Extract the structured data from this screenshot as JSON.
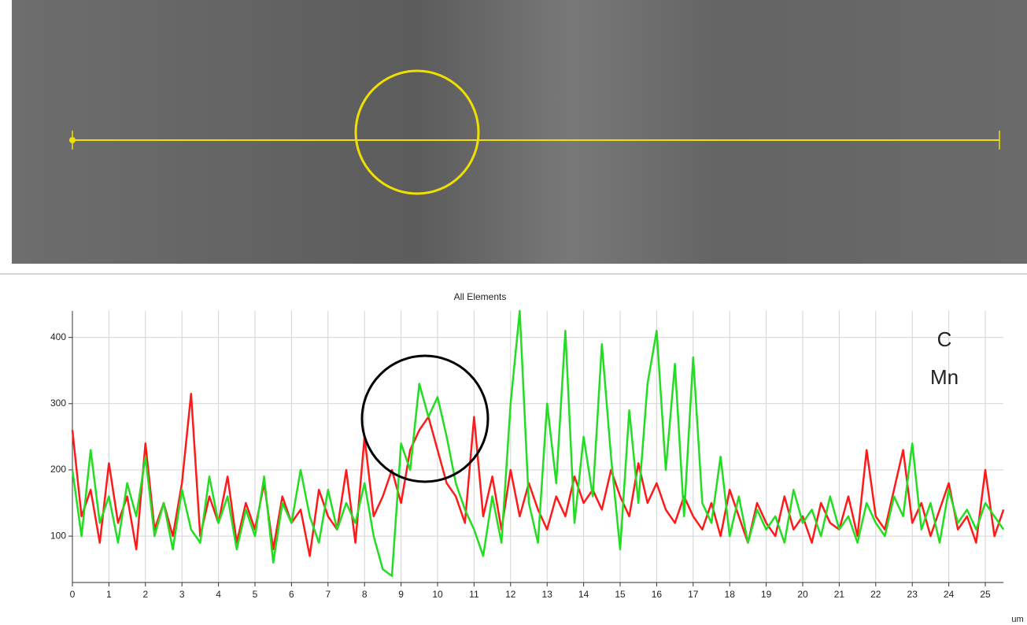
{
  "chart_data": {
    "type": "line",
    "title": "All Elements",
    "x_label": "um",
    "x": [
      0,
      0.25,
      0.5,
      0.75,
      1,
      1.25,
      1.5,
      1.75,
      2,
      2.25,
      2.5,
      2.75,
      3,
      3.25,
      3.5,
      3.75,
      4,
      4.25,
      4.5,
      4.75,
      5,
      5.25,
      5.5,
      5.75,
      6,
      6.25,
      6.5,
      6.75,
      7,
      7.25,
      7.5,
      7.75,
      8,
      8.25,
      8.5,
      8.75,
      9,
      9.25,
      9.5,
      9.75,
      10,
      10.25,
      10.5,
      10.75,
      11,
      11.25,
      11.5,
      11.75,
      12,
      12.25,
      12.5,
      12.75,
      13,
      13.25,
      13.5,
      13.75,
      14,
      14.25,
      14.5,
      14.75,
      15,
      15.25,
      15.5,
      15.75,
      16,
      16.25,
      16.5,
      16.75,
      17,
      17.25,
      17.5,
      17.75,
      18,
      18.25,
      18.5,
      18.75,
      19,
      19.25,
      19.5,
      19.75,
      20,
      20.25,
      20.5,
      20.75,
      21,
      21.25,
      21.5,
      21.75,
      22,
      22.25,
      22.5,
      22.75,
      23,
      23.25,
      23.5,
      23.75,
      24,
      24.25,
      24.5,
      24.75,
      25,
      25.25,
      25.5
    ],
    "series": [
      {
        "name": "Mn",
        "color": "#ff1a1a",
        "values": [
          260,
          130,
          170,
          90,
          210,
          120,
          160,
          80,
          240,
          110,
          150,
          100,
          180,
          315,
          100,
          160,
          120,
          190,
          90,
          150,
          110,
          180,
          80,
          160,
          120,
          140,
          70,
          170,
          130,
          110,
          200,
          90,
          250,
          130,
          160,
          200,
          150,
          230,
          260,
          280,
          230,
          180,
          160,
          120,
          280,
          130,
          190,
          110,
          200,
          130,
          180,
          140,
          110,
          160,
          130,
          190,
          150,
          170,
          140,
          200,
          160,
          130,
          210,
          150,
          180,
          140,
          120,
          160,
          130,
          110,
          150,
          100,
          170,
          130,
          90,
          150,
          120,
          100,
          160,
          110,
          130,
          90,
          150,
          120,
          110,
          160,
          100,
          230,
          130,
          110,
          170,
          230,
          120,
          150,
          100,
          140,
          180,
          110,
          130,
          90,
          200,
          100,
          140
        ]
      },
      {
        "name": "C",
        "color": "#22dd22",
        "values": [
          200,
          100,
          230,
          120,
          160,
          90,
          180,
          130,
          220,
          100,
          150,
          80,
          170,
          110,
          90,
          190,
          120,
          160,
          80,
          140,
          100,
          190,
          60,
          150,
          120,
          200,
          130,
          90,
          170,
          110,
          150,
          120,
          180,
          100,
          50,
          40,
          240,
          200,
          330,
          280,
          310,
          250,
          180,
          140,
          110,
          70,
          160,
          90,
          300,
          440,
          150,
          90,
          300,
          180,
          410,
          120,
          250,
          160,
          390,
          220,
          80,
          290,
          150,
          330,
          410,
          200,
          360,
          130,
          370,
          150,
          120,
          220,
          100,
          160,
          90,
          140,
          110,
          130,
          90,
          170,
          120,
          140,
          100,
          160,
          110,
          130,
          90,
          150,
          120,
          100,
          160,
          130,
          240,
          110,
          150,
          90,
          170,
          120,
          140,
          110,
          150,
          130,
          110
        ]
      }
    ],
    "xlim": [
      0,
      25.5
    ],
    "ylim": [
      30,
      440
    ],
    "xticks": [
      0,
      1,
      2,
      3,
      4,
      5,
      6,
      7,
      8,
      9,
      10,
      11,
      12,
      13,
      14,
      15,
      16,
      17,
      18,
      19,
      20,
      21,
      22,
      23,
      24,
      25
    ],
    "yticks": [
      100,
      200,
      300,
      400
    ],
    "grid": true
  }
}
